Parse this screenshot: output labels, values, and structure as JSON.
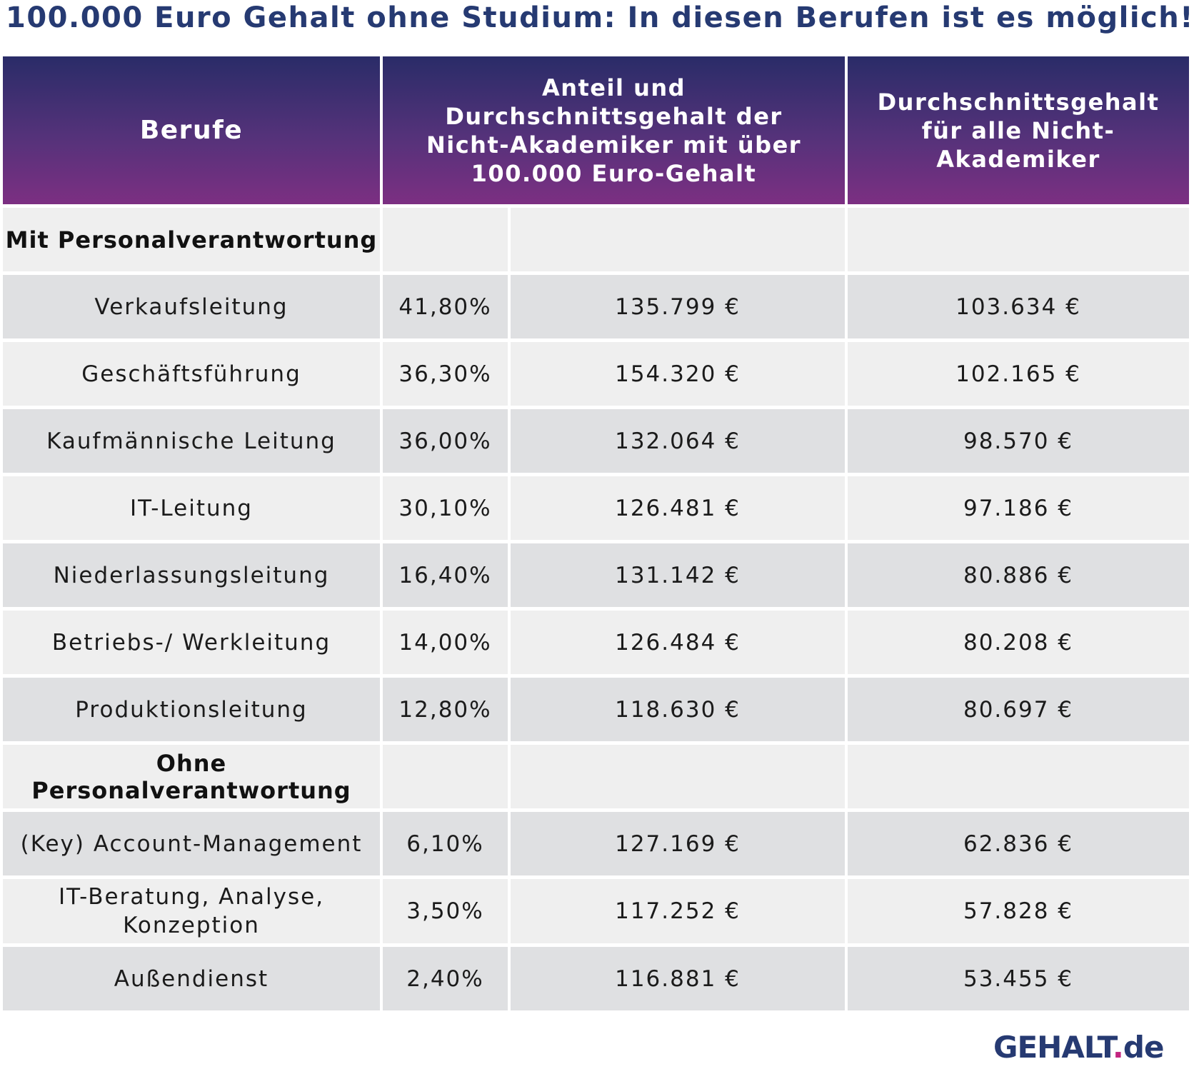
{
  "title": "100.000 Euro Gehalt ohne Studium: In diesen Berufen ist es möglich!",
  "headers": {
    "col1": "Berufe",
    "col2": "Anteil und Durchschnittsgehalt der Nicht-Akademiker mit über 100.000 Euro-Gehalt",
    "col3": "Durchschnittsgehalt für alle Nicht-Akademiker"
  },
  "sections": [
    {
      "label": "Mit Personalverantwortung",
      "rows": [
        {
          "beruf": "Verkaufsleitung",
          "anteil": "41,80%",
          "gehalt_100k": "135.799 €",
          "gehalt_alle": "103.634 €"
        },
        {
          "beruf": "Geschäftsführung",
          "anteil": "36,30%",
          "gehalt_100k": "154.320 €",
          "gehalt_alle": "102.165 €"
        },
        {
          "beruf": "Kaufmännische Leitung",
          "anteil": "36,00%",
          "gehalt_100k": "132.064 €",
          "gehalt_alle": "98.570 €"
        },
        {
          "beruf": "IT-Leitung",
          "anteil": "30,10%",
          "gehalt_100k": "126.481 €",
          "gehalt_alle": "97.186 €"
        },
        {
          "beruf": "Niederlassungsleitung",
          "anteil": "16,40%",
          "gehalt_100k": "131.142 €",
          "gehalt_alle": "80.886 €"
        },
        {
          "beruf": "Betriebs-/ Werkleitung",
          "anteil": "14,00%",
          "gehalt_100k": "126.484 €",
          "gehalt_alle": "80.208 €"
        },
        {
          "beruf": "Produktionsleitung",
          "anteil": "12,80%",
          "gehalt_100k": "118.630 €",
          "gehalt_alle": "80.697 €"
        }
      ]
    },
    {
      "label": "Ohne Personalverantwortung",
      "rows": [
        {
          "beruf": "(Key) Account-Management",
          "anteil": "6,10%",
          "gehalt_100k": "127.169 €",
          "gehalt_alle": "62.836 €"
        },
        {
          "beruf": "IT-Beratung, Analyse, Konzeption",
          "anteil": "3,50%",
          "gehalt_100k": "117.252 €",
          "gehalt_alle": "57.828 €"
        },
        {
          "beruf": "Außendienst",
          "anteil": "2,40%",
          "gehalt_100k": "116.881 €",
          "gehalt_alle": "53.455 €"
        }
      ]
    }
  ],
  "logo": {
    "name": "GEHALT",
    "dot": ".",
    "tld": "de"
  },
  "colors": {
    "title": "#263a72",
    "header_top": "#2a2c68",
    "header_bottom": "#7c2f82",
    "row_light": "#efefef",
    "row_dark": "#dfe0e2",
    "logo_dot": "#c2247f"
  }
}
